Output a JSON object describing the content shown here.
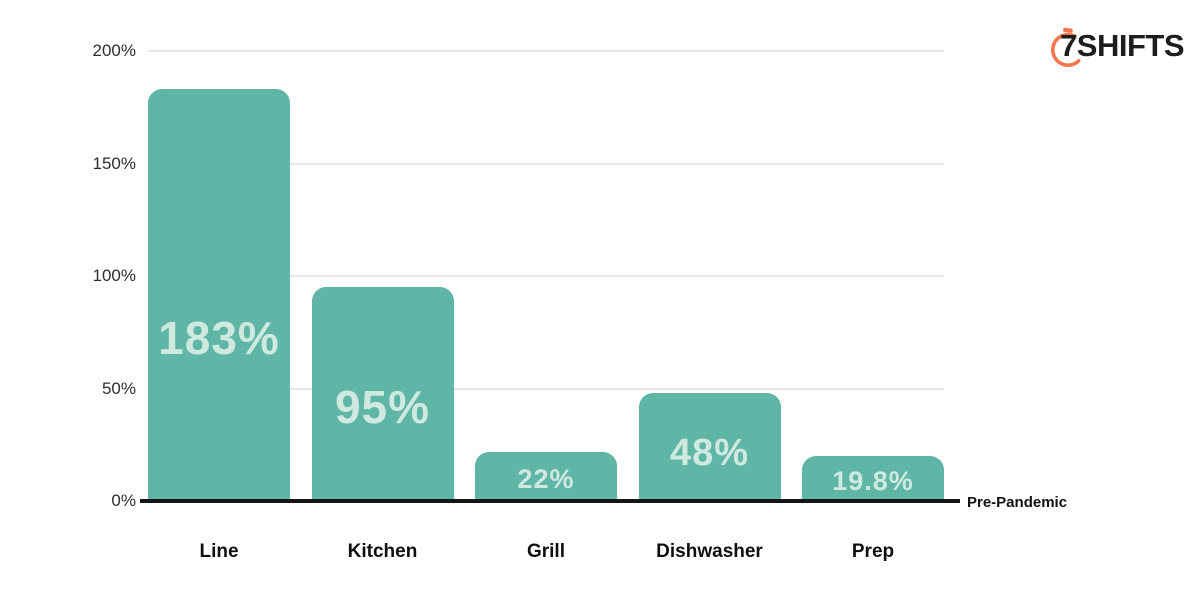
{
  "logo": {
    "text": "7SHIFTS",
    "icon": "stopwatch-icon",
    "accent_color": "#f4764f",
    "text_color": "#1d1d1b"
  },
  "colors": {
    "bar": "#5fb6a6",
    "bar_value_label": "#cfe9e1",
    "gridline": "#e5e8e8",
    "baseline": "#141414",
    "y_tick_text": "#2e2e2e",
    "category_text": "#0f0f0f",
    "background": "#ffffff"
  },
  "chart_data": {
    "type": "bar",
    "title": "",
    "xlabel": "",
    "ylabel": "",
    "categories": [
      "Line",
      "Kitchen",
      "Grill",
      "Dishwasher",
      "Prep"
    ],
    "values": [
      183,
      95,
      22,
      48,
      19.8
    ],
    "value_labels": [
      "183%",
      "95%",
      "22%",
      "48%",
      "19.8%"
    ],
    "y_ticks": [
      {
        "value": 0,
        "label": "0%"
      },
      {
        "value": 50,
        "label": "50%"
      },
      {
        "value": 100,
        "label": "100%"
      },
      {
        "value": 150,
        "label": "150%"
      },
      {
        "value": 200,
        "label": "200%"
      }
    ],
    "ylim": [
      0,
      200
    ],
    "grid": true,
    "legend": false,
    "baseline_label": "Pre-Pandemic"
  }
}
